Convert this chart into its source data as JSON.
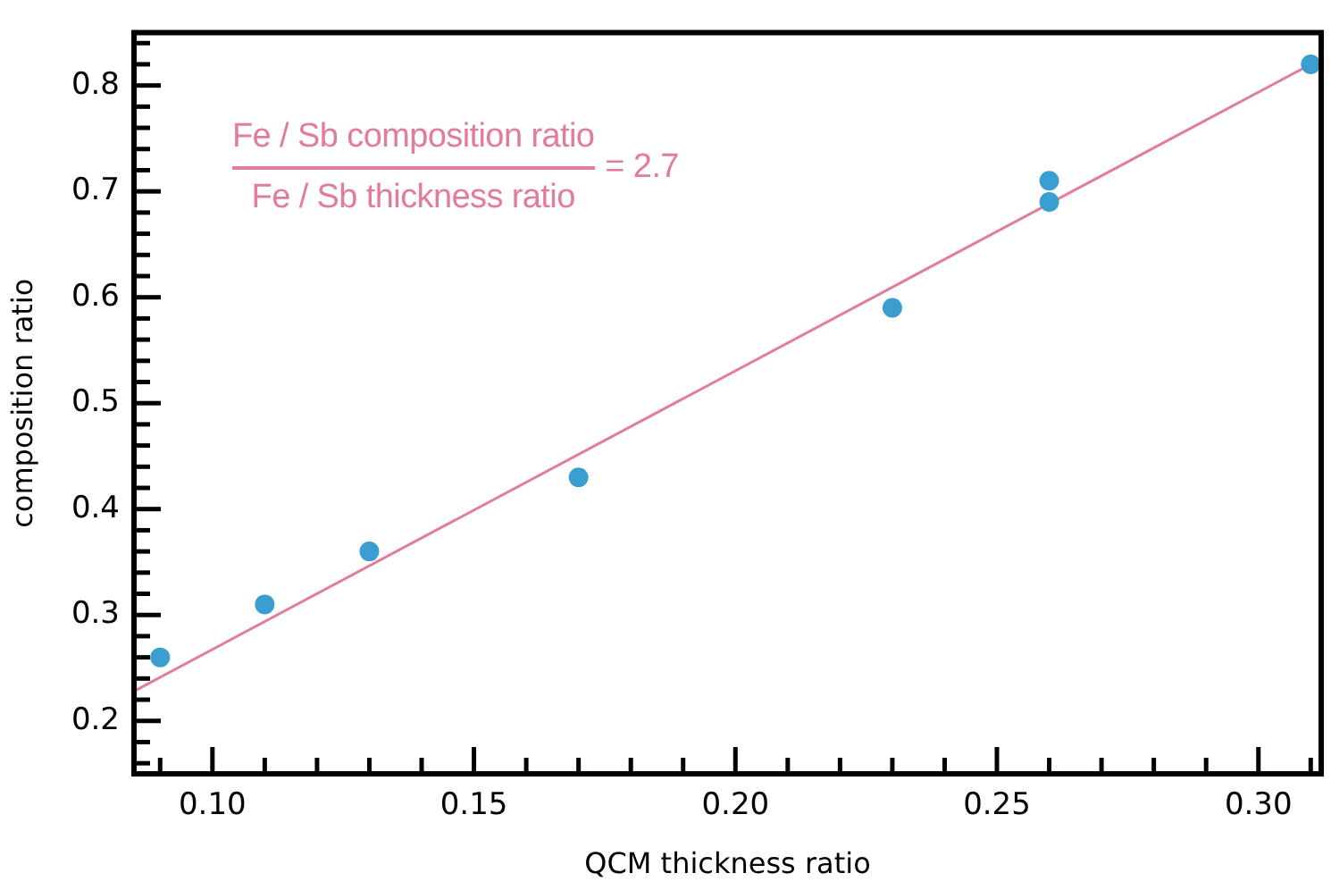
{
  "chart_data": {
    "type": "scatter",
    "xlabel": "QCM thickness ratio",
    "ylabel": "composition ratio",
    "xlim": [
      0.085,
      0.312
    ],
    "ylim": [
      0.15,
      0.85
    ],
    "xticks": [
      {
        "value": 0.09,
        "label": null
      },
      {
        "value": 0.1,
        "label": "0.10"
      },
      {
        "value": 0.11,
        "label": null
      },
      {
        "value": 0.12,
        "label": null
      },
      {
        "value": 0.13,
        "label": null
      },
      {
        "value": 0.14,
        "label": null
      },
      {
        "value": 0.15,
        "label": "0.15"
      },
      {
        "value": 0.16,
        "label": null
      },
      {
        "value": 0.17,
        "label": null
      },
      {
        "value": 0.18,
        "label": null
      },
      {
        "value": 0.19,
        "label": null
      },
      {
        "value": 0.2,
        "label": "0.20"
      },
      {
        "value": 0.21,
        "label": null
      },
      {
        "value": 0.22,
        "label": null
      },
      {
        "value": 0.23,
        "label": null
      },
      {
        "value": 0.24,
        "label": null
      },
      {
        "value": 0.25,
        "label": "0.25"
      },
      {
        "value": 0.26,
        "label": null
      },
      {
        "value": 0.27,
        "label": null
      },
      {
        "value": 0.28,
        "label": null
      },
      {
        "value": 0.29,
        "label": null
      },
      {
        "value": 0.3,
        "label": "0.30"
      },
      {
        "value": 0.31,
        "label": null
      }
    ],
    "yticks": [
      {
        "value": 0.16,
        "label": null
      },
      {
        "value": 0.18,
        "label": null
      },
      0.2,
      {
        "value": 0.22,
        "label": null
      },
      {
        "value": 0.24,
        "label": null
      },
      {
        "value": 0.26,
        "label": null
      },
      {
        "value": 0.28,
        "label": null
      },
      0.3,
      {
        "value": 0.32,
        "label": null
      },
      {
        "value": 0.34,
        "label": null
      },
      {
        "value": 0.36,
        "label": null
      },
      {
        "value": 0.38,
        "label": null
      },
      0.4,
      {
        "value": 0.42,
        "label": null
      },
      {
        "value": 0.44,
        "label": null
      },
      {
        "value": 0.46,
        "label": null
      },
      {
        "value": 0.48,
        "label": null
      },
      0.5,
      {
        "value": 0.52,
        "label": null
      },
      {
        "value": 0.54,
        "label": null
      },
      {
        "value": 0.56,
        "label": null
      },
      {
        "value": 0.58,
        "label": null
      },
      0.6,
      {
        "value": 0.62,
        "label": null
      },
      {
        "value": 0.64,
        "label": null
      },
      {
        "value": 0.66,
        "label": null
      },
      {
        "value": 0.68,
        "label": null
      },
      0.7,
      {
        "value": 0.72,
        "label": null
      },
      {
        "value": 0.74,
        "label": null
      },
      {
        "value": 0.76,
        "label": null
      },
      {
        "value": 0.78,
        "label": null
      },
      0.8,
      {
        "value": 0.82,
        "label": null
      },
      {
        "value": 0.84,
        "label": null
      }
    ],
    "grid": false,
    "legend": false,
    "series": [
      {
        "type": "line",
        "color": "#e17c9c",
        "marker": "none",
        "x": [
          0.085,
          0.31
        ],
        "values": [
          0.228,
          0.82
        ]
      },
      {
        "color": "#3a9fd0",
        "marker": "circle",
        "x": [
          0.09,
          0.11,
          0.13,
          0.17,
          0.23,
          0.26,
          0.26,
          0.31
        ],
        "values": [
          0.26,
          0.31,
          0.36,
          0.43,
          0.59,
          0.71,
          0.69,
          0.82
        ]
      }
    ],
    "annotations": [
      "Fe / Sb composition ratio",
      "Fe / Sb thickness ratio",
      "= 2.7"
    ]
  }
}
